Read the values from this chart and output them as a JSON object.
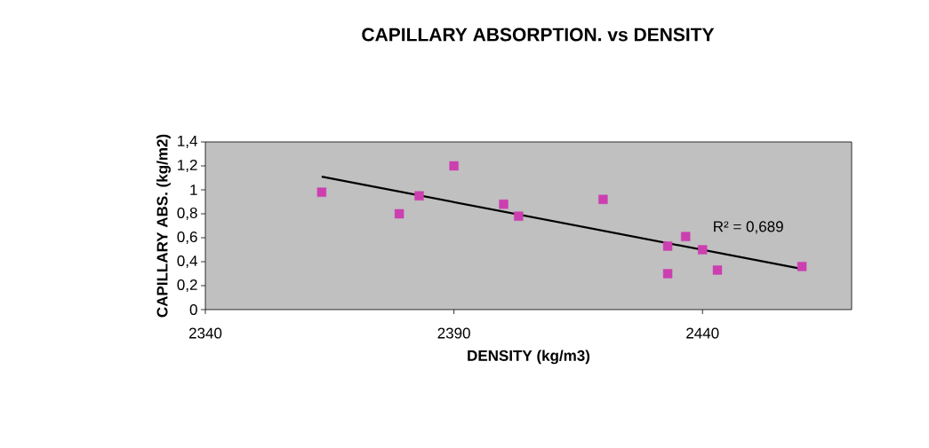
{
  "chart_data": {
    "type": "scatter",
    "title": "CAPILLARY ABSORPTION. vs DENSITY",
    "xlabel": "DENSITY (kg/m3)",
    "ylabel": "CAPILLARY ABS. (kg/m2)",
    "xlim": [
      2340,
      2470
    ],
    "xticks": [
      2340,
      2390,
      2440
    ],
    "ylim": [
      0,
      1.4
    ],
    "yticks": [
      0,
      {
        "value": 0.2,
        "label": "0,2"
      },
      {
        "value": 0.4,
        "label": "0,4"
      },
      {
        "value": 0.6,
        "label": "0,6"
      },
      {
        "value": 0.8,
        "label": "0,8"
      },
      1,
      {
        "value": 1.2,
        "label": "1,2"
      },
      {
        "value": 1.4,
        "label": "1,4"
      }
    ],
    "marker": "square",
    "series": [
      {
        "color": "#cc3fb0",
        "x": [
          2363.4,
          2379,
          2383,
          2390,
          2400,
          2403,
          2420,
          2433,
          2433,
          2436.6,
          2440,
          2443,
          2460
        ],
        "values": [
          0.98,
          0.8,
          0.95,
          1.2,
          0.88,
          0.78,
          0.92,
          0.53,
          0.3,
          0.61,
          0.5,
          0.33,
          0.36
        ]
      },
      {
        "type": "line",
        "color": "#000000",
        "marker": "none",
        "x": [
          2363.4,
          2460
        ],
        "values": [
          1.11,
          0.34
        ]
      }
    ],
    "annotations": [
      "R² = 0,689"
    ]
  }
}
